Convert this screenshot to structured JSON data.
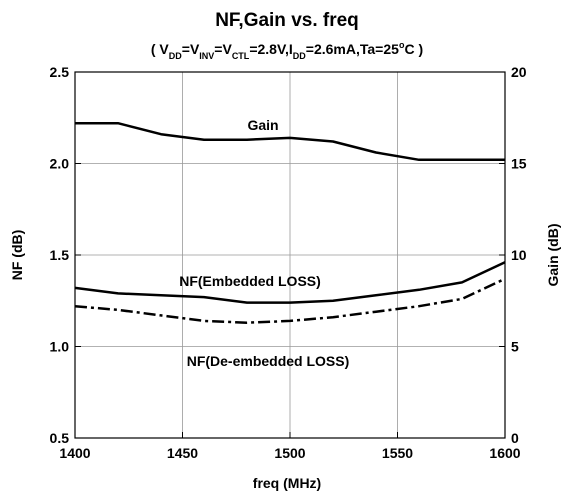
{
  "chart_data": {
    "type": "line",
    "title": "NF,Gain vs. freq",
    "subtitle": [
      {
        "text": "( V",
        "sub": false
      },
      {
        "text": "DD",
        "sub": true
      },
      {
        "text": "=V",
        "sub": false
      },
      {
        "text": "INV",
        "sub": true
      },
      {
        "text": "=V",
        "sub": false
      },
      {
        "text": "CTL",
        "sub": true
      },
      {
        "text": "=2.8V,I",
        "sub": false
      },
      {
        "text": "DD",
        "sub": true
      },
      {
        "text": "=2.6mA,Ta=25",
        "sub": false
      },
      {
        "text": "o",
        "sup": true
      },
      {
        "text": "C )",
        "sub": false
      }
    ],
    "x_label": "freq (MHz)",
    "y_label": "NF (dB)",
    "y2_label": "Gain (dB)",
    "x": [
      1400,
      1420,
      1440,
      1460,
      1480,
      1500,
      1520,
      1540,
      1560,
      1580,
      1600
    ],
    "xlim": [
      1400,
      1600
    ],
    "xticks": [
      1400,
      1450,
      1500,
      1550,
      1600
    ],
    "ylim": [
      0.5,
      2.5
    ],
    "yticks": [
      0.5,
      {
        "value": 1,
        "label": "1.0"
      },
      1.5,
      {
        "value": 2,
        "label": "2.0"
      },
      2.5
    ],
    "y2lim": [
      0,
      20
    ],
    "y2ticks": [
      0,
      5,
      10,
      15,
      20
    ],
    "grid": true,
    "series": [
      {
        "name": "Gain",
        "color": "#000000",
        "axis": "y2",
        "dash": "solid",
        "values": [
          17.2,
          17.2,
          16.6,
          16.3,
          16.3,
          16.4,
          16.2,
          15.6,
          15.2,
          15.2,
          15.2
        ]
      },
      {
        "name": "NF(Embedded LOSS)",
        "color": "#000000",
        "axis": "y",
        "dash": "solid",
        "values": [
          1.32,
          1.29,
          1.28,
          1.27,
          1.24,
          1.24,
          1.25,
          1.28,
          1.31,
          1.35,
          1.46
        ]
      },
      {
        "name": "NF(De-embedded LOSS)",
        "color": "#000000",
        "axis": "y",
        "dash": "dashdot",
        "values": [
          1.22,
          1.2,
          1.17,
          1.14,
          1.13,
          1.14,
          1.16,
          1.19,
          1.22,
          1.26,
          1.37
        ]
      }
    ]
  }
}
